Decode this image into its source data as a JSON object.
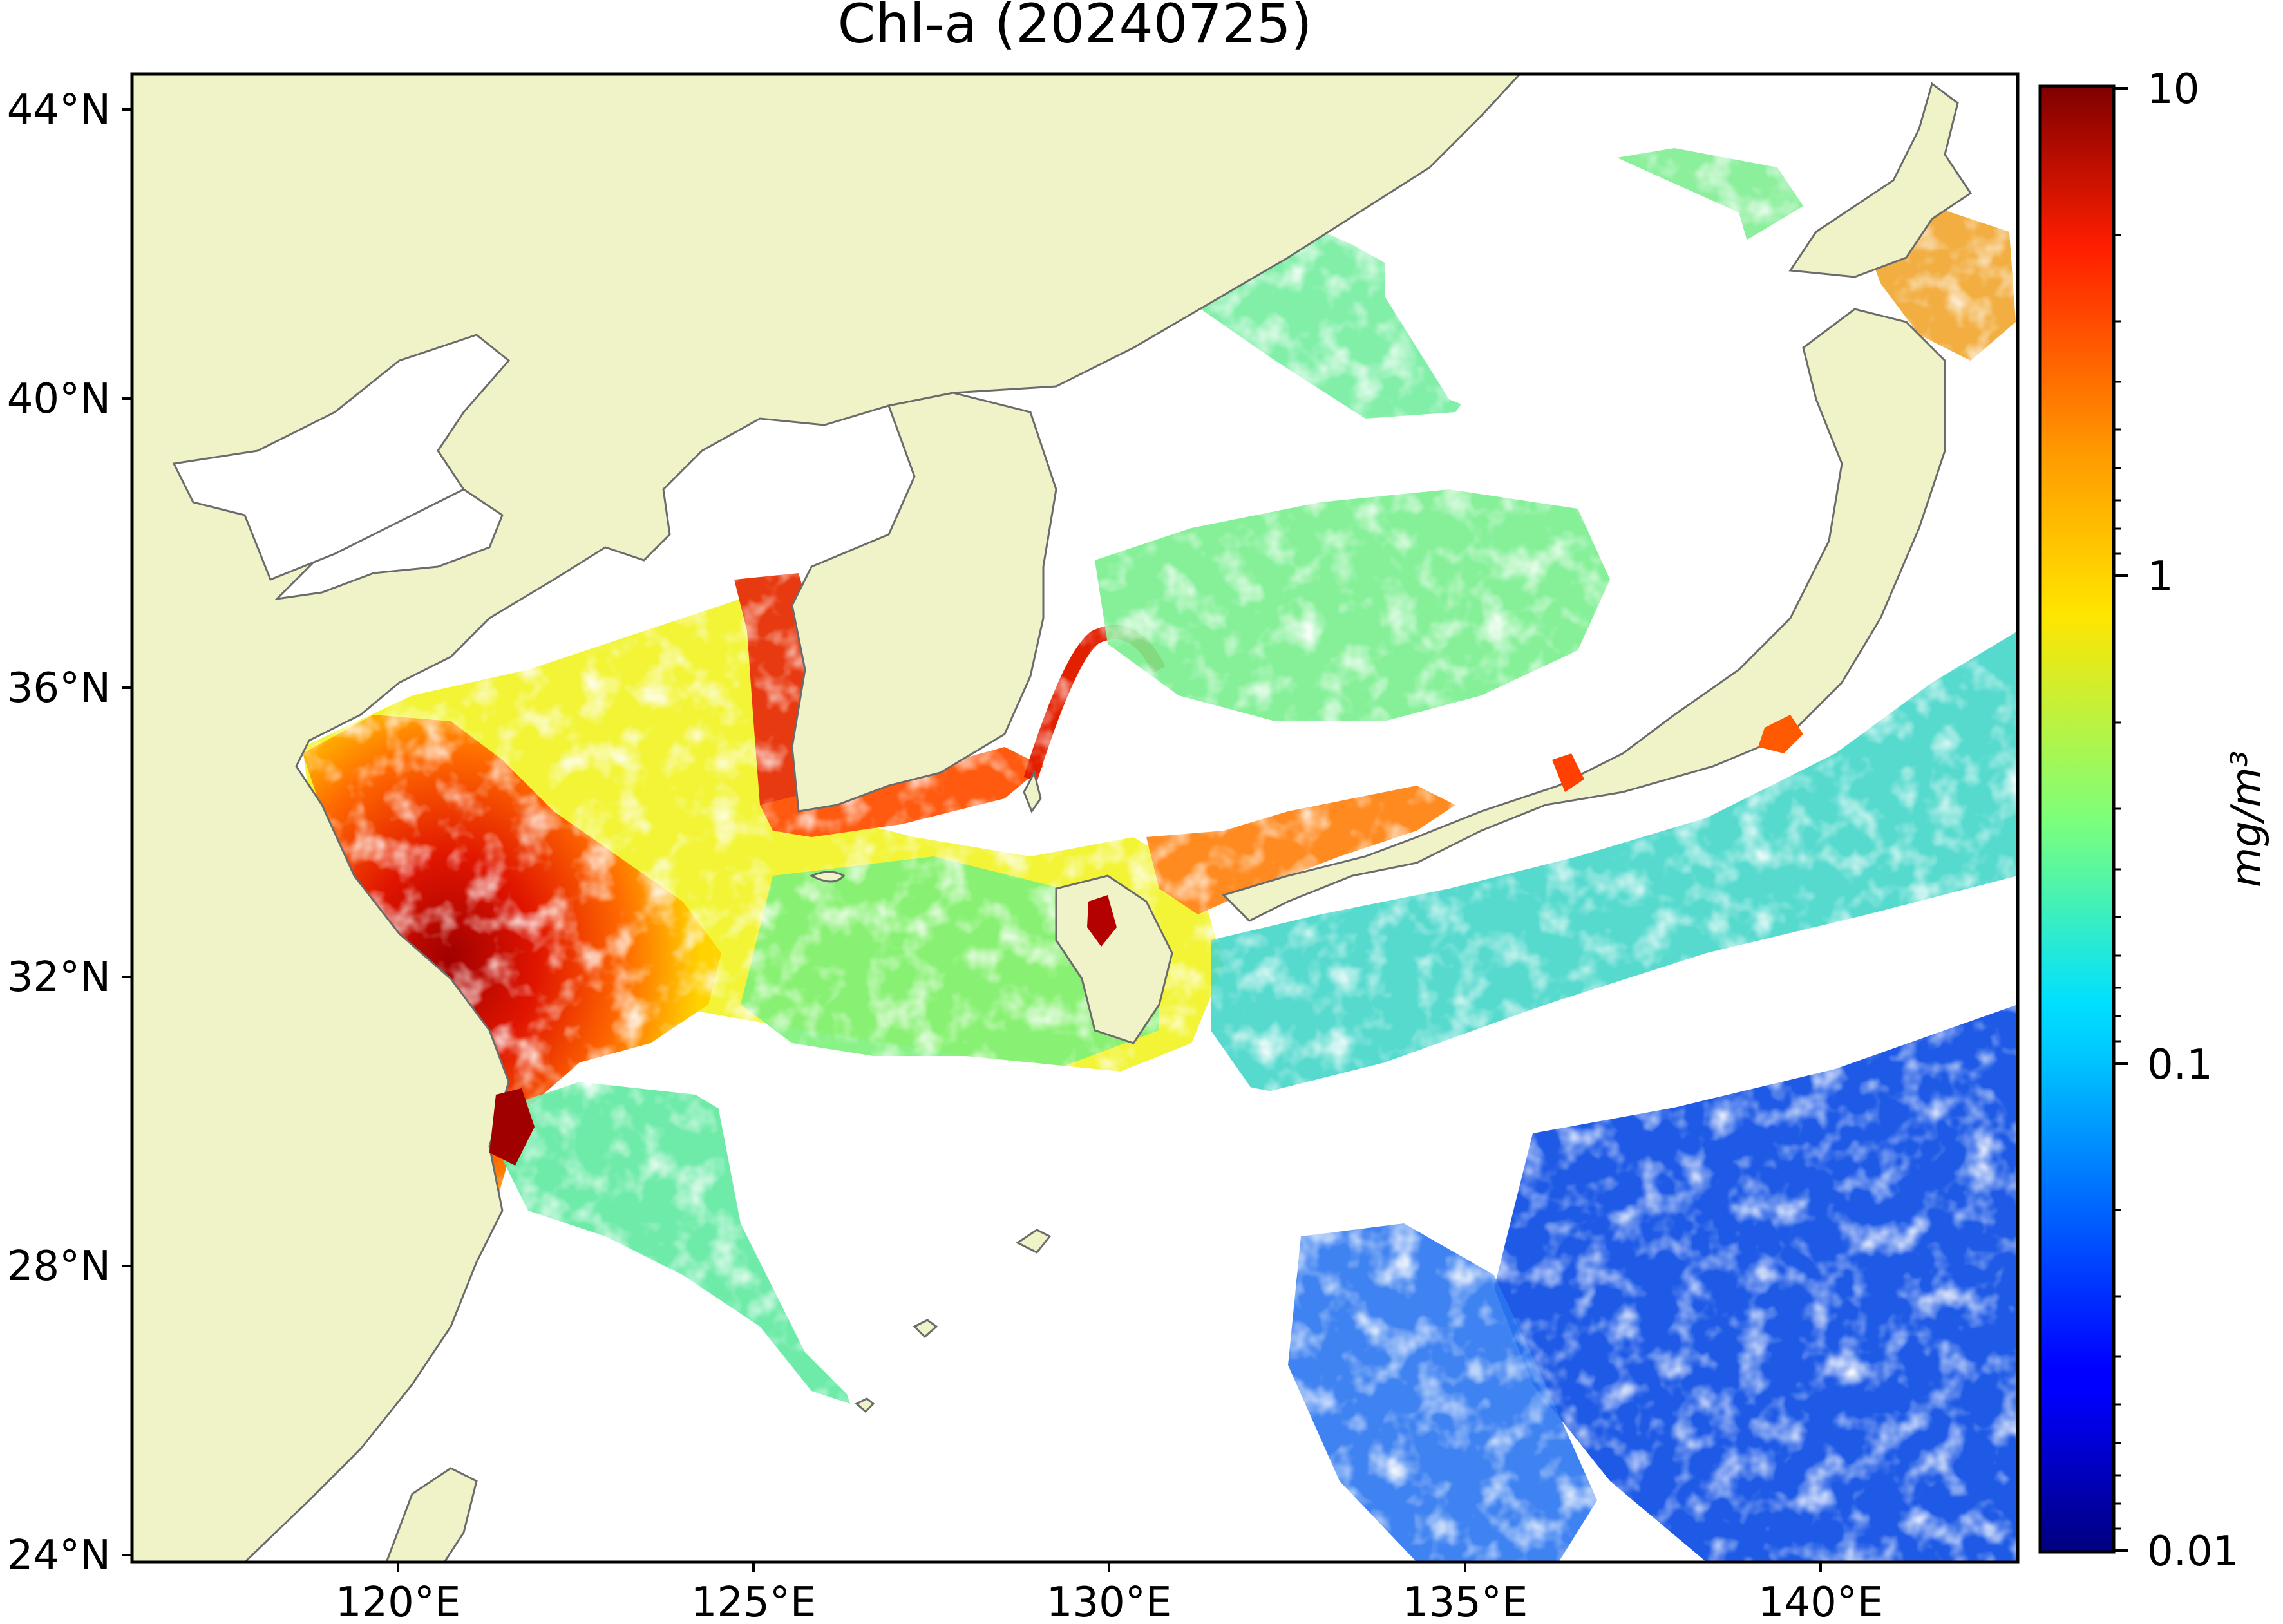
{
  "title": "Chl-a (20240725)",
  "map": {
    "lat_ticks": [
      "44°N",
      "40°N",
      "36°N",
      "32°N",
      "28°N",
      "24°N"
    ],
    "lon_ticks": [
      "120°E",
      "125°E",
      "130°E",
      "135°E",
      "140°E"
    ],
    "lat_range": [
      24,
      44.5
    ],
    "lon_range": [
      116.5,
      143
    ]
  },
  "colorbar": {
    "label": "mg/m³",
    "scale": "log",
    "min": 0.01,
    "max": 10,
    "tick_labels": [
      "10",
      "1",
      "0.1",
      "0.01"
    ],
    "colormap": "jet"
  },
  "colors": {
    "land": "#f0f3c8",
    "coastline": "#6b6b6b",
    "no_data": "#ffffff"
  }
}
